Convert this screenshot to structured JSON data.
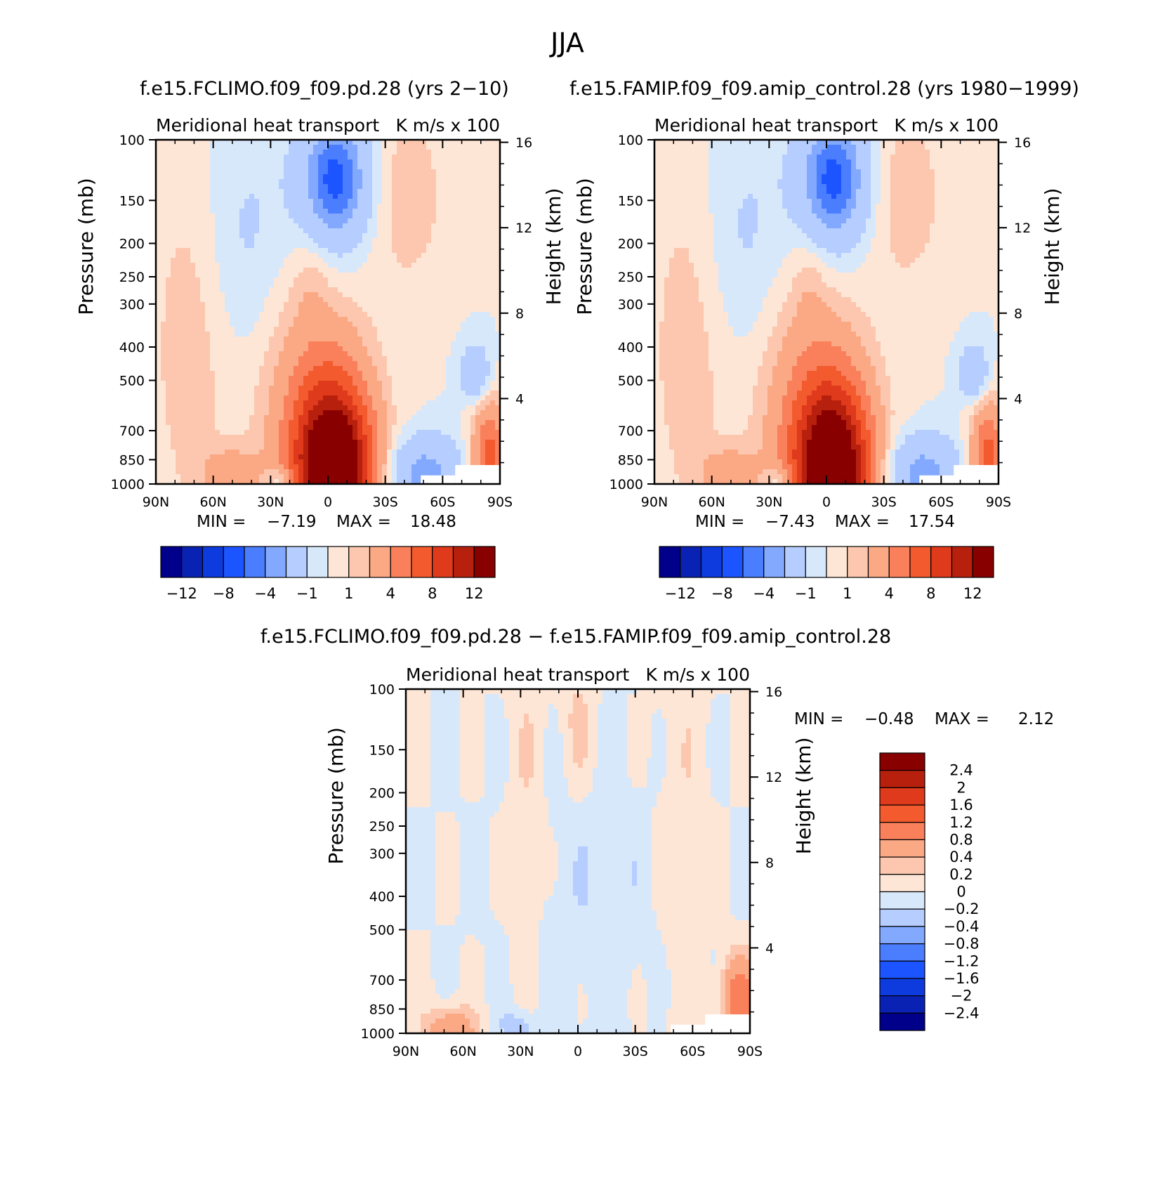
{
  "title": "JJA",
  "chart_data": [
    {
      "type": "heatmap",
      "title": "f.e15.FCLIMO.f09_f09.pd.28 (yrs 2−10)",
      "subtitle_left": "Meridional heat transport",
      "subtitle_right": "K m/s x 100",
      "ylabel": "Pressure (mb)",
      "ylabel_right": "Height (km)",
      "x_ticks": [
        "90N",
        "60N",
        "30N",
        "0",
        "30S",
        "60S",
        "90S"
      ],
      "y_ticks": [
        "100",
        "150",
        "200",
        "250",
        "300",
        "400",
        "500",
        "700",
        "850",
        "1000"
      ],
      "y_ticks_right": [
        "16",
        "12",
        "8",
        "4"
      ],
      "min_label": "MIN =",
      "min_value": "−7.19",
      "max_label": "MAX =",
      "max_value": "18.48",
      "colorbar_labels": [
        "−12",
        "−8",
        "−4",
        "−1",
        "1",
        "4",
        "8",
        "12"
      ]
    },
    {
      "type": "heatmap",
      "title": "f.e15.FAMIP.f09_f09.amip_control.28 (yrs 1980−1999)",
      "subtitle_left": "Meridional heat transport",
      "subtitle_right": "K m/s x 100",
      "ylabel": "Pressure (mb)",
      "ylabel_right": "Height (km)",
      "x_ticks": [
        "90N",
        "60N",
        "30N",
        "0",
        "30S",
        "60S",
        "90S"
      ],
      "y_ticks": [
        "100",
        "150",
        "200",
        "250",
        "300",
        "400",
        "500",
        "700",
        "850",
        "1000"
      ],
      "y_ticks_right": [
        "16",
        "12",
        "8",
        "4"
      ],
      "min_label": "MIN =",
      "min_value": "−7.43",
      "max_label": "MAX =",
      "max_value": "17.54",
      "colorbar_labels": [
        "−12",
        "−8",
        "−4",
        "−1",
        "1",
        "4",
        "8",
        "12"
      ]
    },
    {
      "type": "heatmap",
      "title": "f.e15.FCLIMO.f09_f09.pd.28 − f.e15.FAMIP.f09_f09.amip_control.28",
      "subtitle_left": "Meridional heat transport",
      "subtitle_right": "K m/s x 100",
      "ylabel": "Pressure (mb)",
      "ylabel_right": "Height (km)",
      "x_ticks": [
        "90N",
        "60N",
        "30N",
        "0",
        "30S",
        "60S",
        "90S"
      ],
      "y_ticks": [
        "100",
        "150",
        "200",
        "250",
        "300",
        "400",
        "500",
        "700",
        "850",
        "1000"
      ],
      "y_ticks_right": [
        "16",
        "12",
        "8",
        "4"
      ],
      "min_label": "MIN =",
      "min_value": "−0.48",
      "max_label": "MAX =",
      "max_value": "2.12",
      "colorbar_labels": [
        "2.4",
        "2",
        "1.6",
        "1.2",
        "0.8",
        "0.4",
        "0.2",
        "0",
        "−0.2",
        "−0.4",
        "−0.8",
        "−1.2",
        "−1.6",
        "−2",
        "−2.4"
      ]
    }
  ],
  "palette": [
    "#00008b",
    "#0a22b4",
    "#0e3bde",
    "#1c55ff",
    "#4b7dff",
    "#83a9ff",
    "#b5cdff",
    "#d8e8fb",
    "#fde6d6",
    "#fcc7ae",
    "#fba885",
    "#f9805b",
    "#f35a2d",
    "#df3a1b",
    "#b8200e",
    "#890000"
  ]
}
